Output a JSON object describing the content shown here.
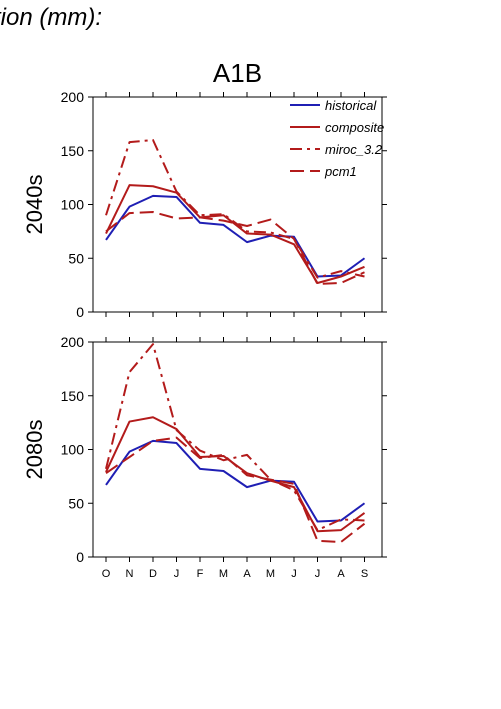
{
  "page": {
    "title": "tion (mm):"
  },
  "legend": {
    "placement": "top-right of upper panel",
    "entries": [
      {
        "label": "historical",
        "color": "#1f1fb4",
        "dash": "solid"
      },
      {
        "label": "composite",
        "color": "#b31b1b",
        "dash": "solid"
      },
      {
        "label": "miroc_3.2",
        "color": "#b31b1b",
        "dash": "dash-dot"
      },
      {
        "label": "pcm1",
        "color": "#b31b1b",
        "dash": "long-dash"
      }
    ]
  },
  "chart_data": [
    {
      "type": "line",
      "title": "A1B",
      "ylabel": "2040s",
      "xlabel": "",
      "categories": [
        "O",
        "N",
        "D",
        "J",
        "F",
        "M",
        "A",
        "M",
        "J",
        "J",
        "A",
        "S"
      ],
      "ylim": [
        0,
        200
      ],
      "yticks": [
        0,
        50,
        100,
        150,
        200
      ],
      "series": [
        {
          "name": "historical",
          "values": [
            67,
            98,
            108,
            107,
            83,
            81,
            65,
            71,
            70,
            33,
            34,
            50
          ]
        },
        {
          "name": "composite",
          "values": [
            73,
            118,
            117,
            111,
            88,
            90,
            73,
            72,
            63,
            27,
            33,
            42
          ]
        },
        {
          "name": "miroc_3.2",
          "values": [
            90,
            158,
            160,
            112,
            90,
            91,
            75,
            74,
            68,
            32,
            38,
            33
          ]
        },
        {
          "name": "pcm1",
          "values": [
            75,
            92,
            93,
            87,
            88,
            85,
            80,
            86,
            68,
            26,
            27,
            37
          ]
        }
      ]
    },
    {
      "type": "line",
      "title": "",
      "ylabel": "2080s",
      "xlabel": "",
      "categories": [
        "O",
        "N",
        "D",
        "J",
        "F",
        "M",
        "A",
        "M",
        "J",
        "J",
        "A",
        "S"
      ],
      "ylim": [
        0,
        200
      ],
      "yticks": [
        0,
        50,
        100,
        150,
        200
      ],
      "series": [
        {
          "name": "historical",
          "values": [
            67,
            98,
            108,
            106,
            82,
            80,
            65,
            71,
            70,
            33,
            34,
            50
          ]
        },
        {
          "name": "composite",
          "values": [
            79,
            126,
            130,
            119,
            93,
            94,
            78,
            71,
            65,
            24,
            25,
            41
          ]
        },
        {
          "name": "miroc_3.2",
          "values": [
            82,
            172,
            198,
            118,
            99,
            90,
            95,
            72,
            62,
            25,
            35,
            34
          ]
        },
        {
          "name": "pcm1",
          "values": [
            78,
            93,
            108,
            111,
            92,
            95,
            76,
            72,
            68,
            15,
            14,
            31
          ]
        }
      ]
    }
  ]
}
